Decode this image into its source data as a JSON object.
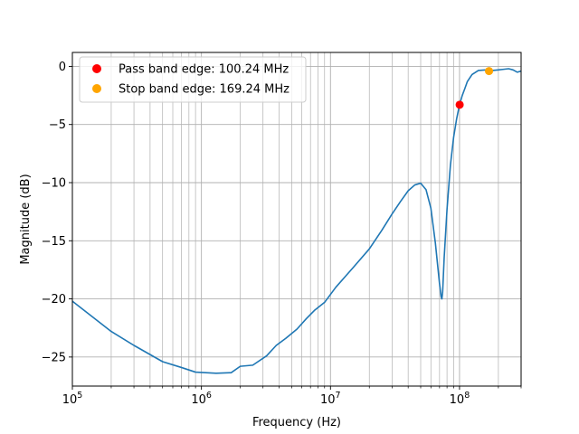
{
  "chart_data": {
    "type": "line",
    "title": "",
    "xlabel": "Frequency (Hz)",
    "ylabel": "Magnitude (dB)",
    "xscale": "log",
    "xlim": [
      100000,
      300000000
    ],
    "ylim": [
      -27.5,
      1.2
    ],
    "grid": "on (major and minor)",
    "legend_placement": "top-left",
    "x_tick_labels": [
      {
        "value": 100000,
        "base": "10",
        "exp": "5"
      },
      {
        "value": 1000000,
        "base": "10",
        "exp": "6"
      },
      {
        "value": 10000000,
        "base": "10",
        "exp": "7"
      },
      {
        "value": 100000000,
        "base": "10",
        "exp": "8"
      }
    ],
    "y_ticks": [
      0,
      -5,
      -10,
      -15,
      -20,
      -25
    ],
    "y_tick_labels": [
      "0",
      "−5",
      "−10",
      "−15",
      "−20",
      "−25"
    ],
    "series": [
      {
        "color": "#1f77b4",
        "x": [
          100000,
          200000,
          300000,
          500000,
          700000,
          900000,
          1300000,
          1700000,
          2000000,
          2500000,
          3200000,
          3800000,
          4500000,
          5500000,
          6500000,
          7500000,
          9000000,
          11000000,
          15000000,
          20000000,
          25000000,
          30000000,
          35000000,
          40000000,
          45000000,
          50000000,
          55000000,
          60000000,
          65000000,
          70000000,
          72000000,
          73000000,
          74000000,
          76000000,
          80000000,
          85000000,
          90000000,
          95000000,
          100000000,
          105000000,
          110000000,
          115000000,
          125000000,
          140000000,
          160000000,
          180000000,
          200000000,
          220000000,
          240000000,
          260000000,
          280000000,
          300000000
        ],
        "y": [
          -20.2,
          -22.8,
          -24.0,
          -25.4,
          -25.9,
          -26.3,
          -26.4,
          -26.35,
          -25.8,
          -25.7,
          -24.9,
          -24.0,
          -23.4,
          -22.6,
          -21.7,
          -21.0,
          -20.3,
          -19.0,
          -17.3,
          -15.7,
          -14.1,
          -12.7,
          -11.6,
          -10.7,
          -10.2,
          -10.05,
          -10.6,
          -12.2,
          -15.2,
          -18.7,
          -19.8,
          -20.0,
          -19.4,
          -16.5,
          -12.3,
          -8.5,
          -6.1,
          -4.5,
          -3.3,
          -2.5,
          -1.9,
          -1.3,
          -0.7,
          -0.35,
          -0.3,
          -0.35,
          -0.3,
          -0.25,
          -0.2,
          -0.3,
          -0.5,
          -0.4
        ]
      },
      {
        "name": "Pass band edge: 100.24 MHz",
        "type": "scatter",
        "color": "#ff0000",
        "x": [
          100240000
        ],
        "y": [
          -3.3
        ]
      },
      {
        "name": "Stop band edge: 169.24 MHz",
        "type": "scatter",
        "color": "#ffa500",
        "x": [
          169240000
        ],
        "y": [
          -0.4
        ]
      }
    ]
  }
}
